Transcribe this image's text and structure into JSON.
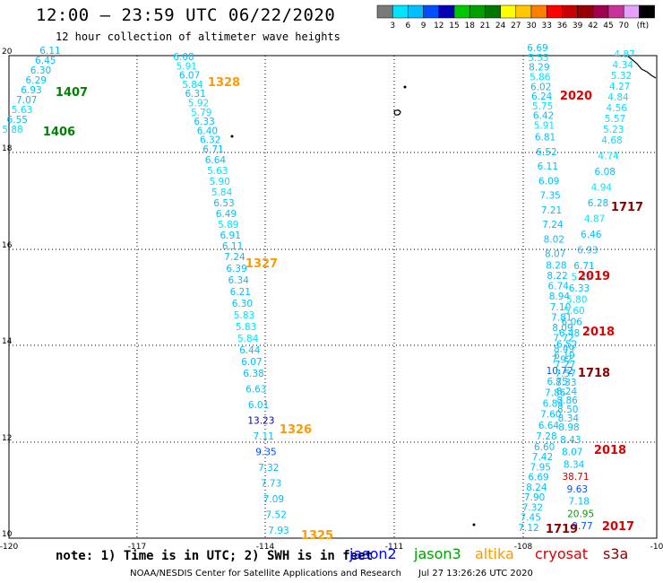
{
  "header": {
    "title": "12:00 – 23:59 UTC 06/22/2020",
    "subtitle": "12 hour collection of altimeter wave heights"
  },
  "colorbar": {
    "colors": [
      "#7a7a7a",
      "#00e4ff",
      "#00c0ff",
      "#0050ff",
      "#0000b4",
      "#00c800",
      "#00a000",
      "#007800",
      "#ffff00",
      "#ffc800",
      "#ff8000",
      "#ff0000",
      "#c80000",
      "#960000",
      "#a00050",
      "#c8329b",
      "#e6a0ff",
      "#000000"
    ],
    "labels": [
      "3",
      "6",
      "9",
      "12",
      "15",
      "18",
      "21",
      "24",
      "27",
      "30",
      "33",
      "36",
      "39",
      "42",
      "45",
      "70"
    ],
    "unit": "(ft)"
  },
  "axes": {
    "x_ticks": [
      "-120",
      "-117",
      "-114",
      "-111",
      "-108",
      "-10"
    ],
    "y_ticks": [
      "20",
      "18",
      "16",
      "14",
      "12",
      "10"
    ]
  },
  "pass_labels": [
    {
      "text": "1407",
      "color": "#008000"
    },
    {
      "text": "1406",
      "color": "#008000"
    },
    {
      "text": "1328",
      "color": "#ff9900"
    },
    {
      "text": "1327",
      "color": "#ff9900"
    },
    {
      "text": "1326",
      "color": "#ff9900"
    },
    {
      "text": "1325",
      "color": "#ff9900"
    },
    {
      "text": "2020",
      "color": "#dd0000"
    },
    {
      "text": "2019",
      "color": "#dd0000"
    },
    {
      "text": "2018",
      "color": "#dd0000"
    },
    {
      "text": "2018",
      "color": "#dd0000"
    },
    {
      "text": "2017",
      "color": "#dd0000"
    },
    {
      "text": "1717",
      "color": "#8b0000"
    },
    {
      "text": "1718",
      "color": "#8b0000"
    },
    {
      "text": "1719",
      "color": "#8b0000"
    }
  ],
  "tracks": {
    "track_a": [
      "6.11",
      "6.45",
      "6.30",
      "6.29",
      "6.93",
      "7.07",
      "5.63",
      "6.55",
      "5.88"
    ],
    "track_b": [
      "6.08",
      "5.91",
      "6.07",
      "5.84",
      "6.31",
      "5.92",
      "5.79",
      "6.33",
      "6.40",
      "6.32",
      "6.71",
      "6.64",
      "5.63",
      "5.90",
      "5.84",
      "6.53",
      "6.49",
      "5.89",
      "6.91",
      "6.11",
      "7.24",
      "6.39",
      "6.34",
      "6.21",
      "6.30",
      "5.83",
      "5.83",
      "5.84",
      "6.44",
      "6.07",
      "6.38",
      "6.63",
      "6.01",
      "13.23",
      "7.11",
      "9.35",
      "7.32",
      "7.73",
      "7.09",
      "7.52",
      "7.93"
    ],
    "track_c": [
      "6.69",
      "5.55",
      "8.29",
      "5.86",
      "6.02",
      "6.24",
      "5.75",
      "6.42",
      "5.91",
      "6.81",
      "6.52",
      "6.11",
      "6.09",
      "7.35",
      "7.21",
      "7.24",
      "8.02",
      "8.07",
      "8.28",
      "8.22",
      "6.74",
      "8.94",
      "7.10",
      "7.81",
      "8.09",
      "7.72",
      "8.49",
      "7.92",
      "10.72",
      "6.75",
      "7.86",
      "6.84",
      "7.60",
      "6.64",
      "7.28",
      "6.60",
      "7.42",
      "7.95",
      "6.69",
      "8.24",
      "7.90",
      "7.32",
      "7.45",
      "7.12"
    ],
    "track_d": [
      "4.87",
      "4.34",
      "5.32",
      "4.27",
      "4.84",
      "4.56",
      "5.57",
      "5.23",
      "4.68",
      "4.74",
      "6.08",
      "4.94",
      "6.28",
      "4.87",
      "6.46",
      "6.93",
      "6.71",
      "5.23",
      "6.33",
      "5.80",
      "5.60",
      "6.06",
      "6.48",
      "6.52",
      "6.19",
      "7.27",
      "7.57",
      "8.33",
      "8.24",
      "8.86",
      "8.50",
      "8.34",
      "8.98",
      "8.43",
      "8.07",
      "8.34",
      "38.71",
      "9.63",
      "7.18",
      "20.95",
      "9.77"
    ]
  },
  "note": "note: 1) Time is in UTC; 2) SWH is in feet",
  "legend": [
    {
      "name": "jason2",
      "color": "#0000ff"
    },
    {
      "name": "jason3",
      "color": "#00a000"
    },
    {
      "name": "altika",
      "color": "#ff9900"
    },
    {
      "name": "cryosat",
      "color": "#dd0000"
    },
    {
      "name": "s3a",
      "color": "#8b0000"
    }
  ],
  "footer": {
    "credit": "NOAA/NESDIS Center for Satellite Applications and Research",
    "timestamp": "Jul 27 13:26:26 UTC 2020"
  }
}
